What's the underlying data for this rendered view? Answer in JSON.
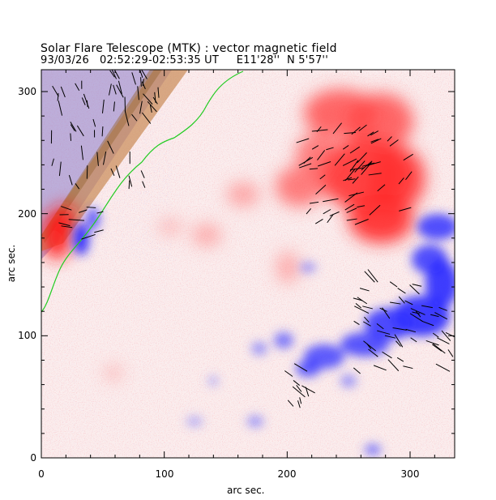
{
  "header": {
    "title_line": "Solar Flare Telescope (MTK) : vector magnetic field",
    "subtitle_line": "93/03/26   02:52:29-02:53:35 UT     E11'28''  N 5'57''"
  },
  "axes": {
    "x_label": "arc sec.",
    "y_label": "arc sec.",
    "x_ticks": [
      "0",
      "100",
      "200",
      "300"
    ],
    "y_ticks": [
      "0",
      "100",
      "200",
      "300"
    ]
  },
  "colors": {
    "positive_polarity": "#ff3b3b",
    "negative_polarity": "#3333ff",
    "noise_red": "#f2b0b0",
    "noise_blue": "#b8b8f4",
    "neutral_line": "#22cc22",
    "vectors": "#000000",
    "limb_band": "#b07a4a"
  }
}
